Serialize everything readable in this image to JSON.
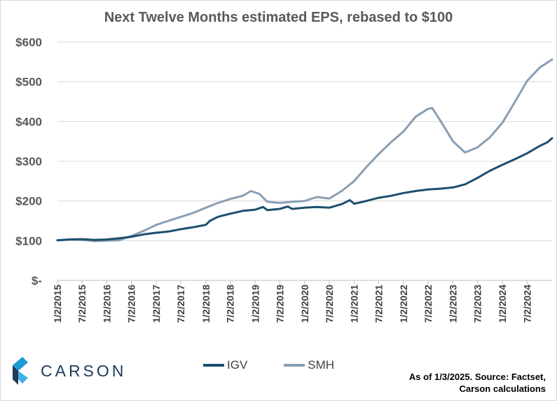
{
  "chart_data": {
    "type": "line",
    "title": "Next Twelve Months estimated EPS, rebased to $100",
    "ylim": [
      0,
      600
    ],
    "ytick_values": [
      0,
      100,
      200,
      300,
      400,
      500,
      600
    ],
    "ytick_labels": [
      "$-",
      "$100",
      "$200",
      "$300",
      "$400",
      "$500",
      "$600"
    ],
    "xlim": [
      "2015-01-02",
      "2025-01-03"
    ],
    "xtick_labels": [
      "1/2/2015",
      "7/2/2015",
      "1/2/2016",
      "7/2/2016",
      "1/2/2017",
      "7/2/2017",
      "1/2/2018",
      "7/2/2018",
      "1/2/2019",
      "7/2/2019",
      "1/2/2020",
      "7/2/2020",
      "1/2/2021",
      "7/2/2021",
      "1/2/2022",
      "7/2/2022",
      "1/2/2023",
      "7/2/2023",
      "1/2/2024",
      "7/2/2024"
    ],
    "grid": "horizontal",
    "legend_position": "bottom",
    "series": [
      {
        "name": "IGV",
        "color": "#1b4f6e",
        "points": [
          [
            "2015-01-02",
            101
          ],
          [
            "2015-04-01",
            103
          ],
          [
            "2015-07-02",
            104
          ],
          [
            "2015-10-01",
            102
          ],
          [
            "2016-01-02",
            103
          ],
          [
            "2016-04-01",
            106
          ],
          [
            "2016-07-02",
            110
          ],
          [
            "2016-10-01",
            116
          ],
          [
            "2017-01-02",
            120
          ],
          [
            "2017-04-01",
            123
          ],
          [
            "2017-07-02",
            129
          ],
          [
            "2017-10-01",
            134
          ],
          [
            "2018-01-02",
            140
          ],
          [
            "2018-02-01",
            150
          ],
          [
            "2018-04-01",
            160
          ],
          [
            "2018-07-02",
            168
          ],
          [
            "2018-10-01",
            175
          ],
          [
            "2019-01-02",
            178
          ],
          [
            "2019-03-01",
            185
          ],
          [
            "2019-04-01",
            177
          ],
          [
            "2019-07-02",
            180
          ],
          [
            "2019-09-01",
            186
          ],
          [
            "2019-10-01",
            180
          ],
          [
            "2020-01-02",
            183
          ],
          [
            "2020-04-01",
            185
          ],
          [
            "2020-07-02",
            183
          ],
          [
            "2020-10-01",
            192
          ],
          [
            "2020-12-01",
            202
          ],
          [
            "2021-01-02",
            193
          ],
          [
            "2021-04-01",
            200
          ],
          [
            "2021-07-02",
            208
          ],
          [
            "2021-10-01",
            213
          ],
          [
            "2022-01-02",
            220
          ],
          [
            "2022-04-01",
            225
          ],
          [
            "2022-07-02",
            229
          ],
          [
            "2022-10-01",
            231
          ],
          [
            "2023-01-02",
            234
          ],
          [
            "2023-04-01",
            242
          ],
          [
            "2023-07-02",
            258
          ],
          [
            "2023-10-01",
            276
          ],
          [
            "2024-01-02",
            291
          ],
          [
            "2024-04-01",
            305
          ],
          [
            "2024-07-02",
            320
          ],
          [
            "2024-10-01",
            338
          ],
          [
            "2024-12-01",
            348
          ],
          [
            "2025-01-03",
            358
          ]
        ]
      },
      {
        "name": "SMH",
        "color": "#8a9eb3",
        "points": [
          [
            "2015-01-02",
            101
          ],
          [
            "2015-04-01",
            103
          ],
          [
            "2015-07-02",
            102
          ],
          [
            "2015-10-01",
            99
          ],
          [
            "2016-01-02",
            100
          ],
          [
            "2016-04-01",
            101
          ],
          [
            "2016-07-02",
            112
          ],
          [
            "2016-10-01",
            125
          ],
          [
            "2017-01-02",
            140
          ],
          [
            "2017-04-01",
            150
          ],
          [
            "2017-07-02",
            160
          ],
          [
            "2017-10-01",
            170
          ],
          [
            "2018-01-02",
            183
          ],
          [
            "2018-04-01",
            195
          ],
          [
            "2018-07-02",
            205
          ],
          [
            "2018-10-01",
            213
          ],
          [
            "2018-12-01",
            225
          ],
          [
            "2019-02-01",
            218
          ],
          [
            "2019-04-01",
            198
          ],
          [
            "2019-07-02",
            195
          ],
          [
            "2019-10-01",
            198
          ],
          [
            "2020-01-02",
            200
          ],
          [
            "2020-04-01",
            210
          ],
          [
            "2020-07-02",
            206
          ],
          [
            "2020-10-01",
            225
          ],
          [
            "2021-01-02",
            250
          ],
          [
            "2021-04-01",
            285
          ],
          [
            "2021-07-02",
            318
          ],
          [
            "2021-10-01",
            348
          ],
          [
            "2022-01-02",
            375
          ],
          [
            "2022-04-01",
            412
          ],
          [
            "2022-07-02",
            432
          ],
          [
            "2022-08-01",
            434
          ],
          [
            "2022-10-01",
            402
          ],
          [
            "2023-01-02",
            350
          ],
          [
            "2023-04-01",
            322
          ],
          [
            "2023-07-02",
            335
          ],
          [
            "2023-10-01",
            360
          ],
          [
            "2024-01-02",
            397
          ],
          [
            "2024-04-01",
            448
          ],
          [
            "2024-07-02",
            502
          ],
          [
            "2024-10-01",
            535
          ],
          [
            "2025-01-03",
            556
          ]
        ]
      }
    ]
  },
  "legend": {
    "igv_label": "IGV",
    "smh_label": "SMH",
    "igv_color": "#1b4f6e",
    "smh_color": "#8a9eb3"
  },
  "branding": {
    "logo_text": "CARSON",
    "logo_icon": "carson-chevron-logo"
  },
  "source_note": {
    "line1": "As of 1/3/2025. Source: Factset,",
    "line2": "Carson calculations"
  }
}
